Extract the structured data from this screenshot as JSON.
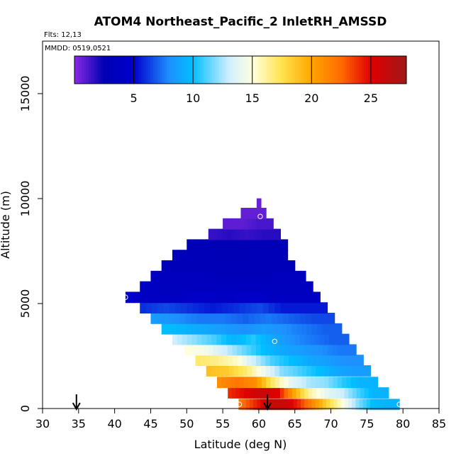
{
  "chart_data": {
    "type": "heatmap",
    "title": "ATOM4 Northeast_Pacific_2 InletRH_AMSSD",
    "meta_lines": [
      "Flts: 12,13",
      "MMDD: 0519,0521"
    ],
    "xlabel": "Latitude (deg N)",
    "ylabel": "Altitude (m)",
    "xlim": [
      30,
      85
    ],
    "ylim": [
      0,
      17500
    ],
    "x_ticks": [
      30,
      35,
      40,
      45,
      50,
      55,
      60,
      65,
      70,
      75,
      80,
      85
    ],
    "y_ticks": [
      0,
      5000,
      10000,
      15000
    ],
    "grid": false,
    "colorbar": {
      "range": [
        0,
        28
      ],
      "ticks": [
        5,
        10,
        15,
        20,
        25
      ],
      "placement": "top-inside",
      "stops": [
        {
          "v": 0,
          "c": "#8a2be2"
        },
        {
          "v": 2.5,
          "c": "#0000b4"
        },
        {
          "v": 5,
          "c": "#0000cd"
        },
        {
          "v": 8,
          "c": "#1e90ff"
        },
        {
          "v": 10,
          "c": "#00bfff"
        },
        {
          "v": 13,
          "c": "#cfeeff"
        },
        {
          "v": 15,
          "c": "#ffffe0"
        },
        {
          "v": 17.5,
          "c": "#ffe34d"
        },
        {
          "v": 20,
          "c": "#ffa500"
        },
        {
          "v": 22.5,
          "c": "#ff6a00"
        },
        {
          "v": 25,
          "c": "#e00000"
        },
        {
          "v": 28,
          "c": "#a01818"
        }
      ]
    },
    "bands": [
      {
        "alt": 200,
        "lat_min": 57.2,
        "lat_max": 79.5,
        "values": [
          22,
          24,
          26,
          26,
          24,
          21,
          18,
          15,
          12,
          10,
          9.5
        ]
      },
      {
        "alt": 750,
        "lat_min": 55.7,
        "lat_max": 78.0,
        "values": [
          24,
          25,
          26,
          25,
          20,
          16,
          14,
          13,
          11,
          9.5
        ]
      },
      {
        "alt": 1250,
        "lat_min": 54.2,
        "lat_max": 76.5,
        "values": [
          21,
          22,
          21,
          17,
          14,
          12.5,
          12,
          10.5,
          9.5
        ]
      },
      {
        "alt": 1800,
        "lat_min": 52.7,
        "lat_max": 75.5,
        "values": [
          19,
          18.5,
          17,
          14.5,
          12,
          11,
          10,
          9,
          8.5
        ]
      },
      {
        "alt": 2300,
        "lat_min": 51.2,
        "lat_max": 74.5,
        "values": [
          17,
          16.5,
          15.5,
          13,
          11,
          10,
          9,
          8.5,
          8
        ]
      },
      {
        "alt": 2800,
        "lat_min": 49.7,
        "lat_max": 73.5,
        "values": [
          15,
          14.5,
          13,
          11.5,
          10,
          9,
          8.5,
          8,
          7.5
        ]
      },
      {
        "alt": 3300,
        "lat_min": 48.0,
        "lat_max": 72.5,
        "values": [
          13,
          12,
          11,
          9.5,
          10.5,
          9,
          8,
          7.5,
          7
        ]
      },
      {
        "alt": 3800,
        "lat_min": 46.5,
        "lat_max": 71.5,
        "values": [
          10,
          9.5,
          9,
          8.5,
          8,
          8.5,
          8,
          7.5,
          7
        ]
      },
      {
        "alt": 4300,
        "lat_min": 45.0,
        "lat_max": 70.5,
        "values": [
          8.5,
          8,
          7.5,
          7.5,
          7,
          7.5,
          7,
          6.5
        ]
      },
      {
        "alt": 4800,
        "lat_min": 43.5,
        "lat_max": 69.5,
        "values": [
          6,
          6.5,
          6,
          5.5,
          6,
          6.5,
          5.5,
          5.5
        ]
      },
      {
        "alt": 5300,
        "lat_min": 41.5,
        "lat_max": 68.5,
        "values": [
          4.5,
          4,
          4,
          4.5,
          4,
          4.5,
          4,
          4
        ]
      },
      {
        "alt": 5800,
        "lat_min": 43.5,
        "lat_max": 67.5,
        "values": [
          4,
          3.5,
          3.5,
          3.5,
          3.5,
          3.5,
          3.5
        ]
      },
      {
        "alt": 6300,
        "lat_min": 45.0,
        "lat_max": 66.5,
        "values": [
          3.5,
          3.5,
          3.5,
          3,
          3,
          3,
          3.5
        ]
      },
      {
        "alt": 6800,
        "lat_min": 46.5,
        "lat_max": 65.0,
        "values": [
          3,
          3,
          3,
          3,
          3,
          3
        ]
      },
      {
        "alt": 7300,
        "lat_min": 48.0,
        "lat_max": 64.0,
        "values": [
          3,
          3,
          2.8,
          2.8,
          3
        ]
      },
      {
        "alt": 7800,
        "lat_min": 50.0,
        "lat_max": 64.0,
        "values": [
          2.8,
          2.6,
          2.6,
          2.8
        ]
      },
      {
        "alt": 8300,
        "lat_min": 53.0,
        "lat_max": 63.0,
        "values": [
          1.5,
          1.8,
          1.5,
          1.8
        ]
      },
      {
        "alt": 8800,
        "lat_min": 55.0,
        "lat_max": 62.0,
        "values": [
          0.8,
          0.8,
          1.2
        ]
      },
      {
        "alt": 9300,
        "lat_min": 57.5,
        "lat_max": 61.0,
        "values": [
          0.7,
          0.7
        ]
      },
      {
        "alt": 9750,
        "lat_min": 59.7,
        "lat_max": 60.3,
        "values": [
          0.6
        ]
      }
    ],
    "markers": [
      {
        "lat": 41.5,
        "alt": 5300
      },
      {
        "lat": 60.2,
        "alt": 9150
      },
      {
        "lat": 62.2,
        "alt": 3200
      },
      {
        "lat": 57.3,
        "alt": 200
      },
      {
        "lat": 79.5,
        "alt": 200
      }
    ],
    "arrows": [
      34.7,
      61.2
    ]
  }
}
